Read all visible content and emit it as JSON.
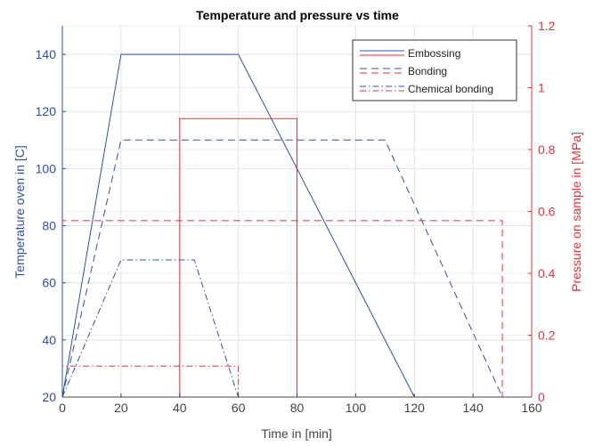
{
  "chart_data": {
    "type": "line",
    "title": "Temperature and pressure vs time",
    "xlabel": "Time in [min]",
    "ylabel_left": "Temperature oven in [C]",
    "ylabel_right": "Pressure on sample in [MPa]",
    "xlim": [
      0,
      160
    ],
    "ylim_left": [
      20,
      150
    ],
    "ylim_right": [
      0,
      1.2
    ],
    "x_ticks": [
      "0",
      "20",
      "40",
      "60",
      "80",
      "100",
      "120",
      "140",
      "160"
    ],
    "y_left_ticks": [
      "20",
      "40",
      "60",
      "80",
      "100",
      "120",
      "140"
    ],
    "y_right_ticks": [
      "0",
      "0.2",
      "0.4",
      "0.6",
      "0.8",
      "1",
      "1.2"
    ],
    "grid": true,
    "legend_position": "top-right",
    "colors": {
      "temperature": "#3050a8",
      "pressure": "#e8303a",
      "left_axis": "#3050a8",
      "right_axis": "#e8303a"
    },
    "legend": [
      {
        "label": "Embossing",
        "dash": "solid"
      },
      {
        "label": "Bonding",
        "dash": "dashed"
      },
      {
        "label": "Chemical bonding",
        "dash": "dashdot"
      }
    ],
    "series": [
      {
        "name": "Embossing",
        "axis": "left",
        "dash": "solid",
        "x": [
          0,
          20,
          60,
          120
        ],
        "y": [
          20,
          140,
          140,
          20
        ]
      },
      {
        "name": "Bonding",
        "axis": "left",
        "dash": "dashed",
        "x": [
          0,
          20,
          110,
          150
        ],
        "y": [
          20,
          110,
          110,
          20
        ]
      },
      {
        "name": "Chemical bonding",
        "axis": "left",
        "dash": "dashdot",
        "x": [
          0,
          20,
          45,
          60
        ],
        "y": [
          20,
          68,
          68,
          20
        ]
      },
      {
        "name": "Embossing",
        "axis": "right",
        "dash": "solid",
        "x": [
          0,
          40,
          40,
          80,
          80,
          120
        ],
        "y": [
          0,
          0,
          0.9,
          0.9,
          0,
          0
        ]
      },
      {
        "name": "Bonding",
        "axis": "right",
        "dash": "dashed",
        "x": [
          0,
          0,
          150,
          150
        ],
        "y": [
          0,
          0.57,
          0.57,
          0
        ]
      },
      {
        "name": "Chemical bonding",
        "axis": "right",
        "dash": "dashdot",
        "x": [
          0,
          0,
          60,
          60
        ],
        "y": [
          0,
          0.1,
          0.1,
          0
        ]
      }
    ]
  }
}
